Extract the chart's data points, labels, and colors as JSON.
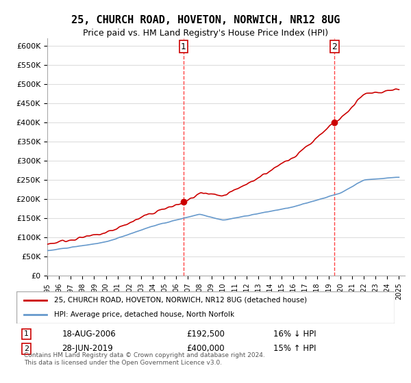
{
  "title": "25, CHURCH ROAD, HOVETON, NORWICH, NR12 8UG",
  "subtitle": "Price paid vs. HM Land Registry's House Price Index (HPI)",
  "ylabel_ticks": [
    "£0",
    "£50K",
    "£100K",
    "£150K",
    "£200K",
    "£250K",
    "£300K",
    "£350K",
    "£400K",
    "£450K",
    "£500K",
    "£550K",
    "£600K"
  ],
  "ylim": [
    0,
    620000
  ],
  "xlim_start": 1995.0,
  "xlim_end": 2025.5,
  "sale1_x": 2006.63,
  "sale1_y": 192500,
  "sale1_label": "1",
  "sale2_x": 2019.49,
  "sale2_y": 400000,
  "sale2_label": "2",
  "vline1_x": 2006.63,
  "vline2_x": 2019.49,
  "legend_line1": "25, CHURCH ROAD, HOVETON, NORWICH, NR12 8UG (detached house)",
  "legend_line2": "HPI: Average price, detached house, North Norfolk",
  "note1_label": "1",
  "note1_date": "18-AUG-2006",
  "note1_price": "£192,500",
  "note1_hpi": "16% ↓ HPI",
  "note2_label": "2",
  "note2_date": "28-JUN-2019",
  "note2_price": "£400,000",
  "note2_hpi": "15% ↑ HPI",
  "footer": "Contains HM Land Registry data © Crown copyright and database right 2024.\nThis data is licensed under the Open Government Licence v3.0.",
  "line_color_red": "#cc0000",
  "line_color_blue": "#6699cc",
  "vline_color": "#ff4444",
  "point_color_red": "#cc0000",
  "background_color": "#ffffff",
  "grid_color": "#dddddd"
}
